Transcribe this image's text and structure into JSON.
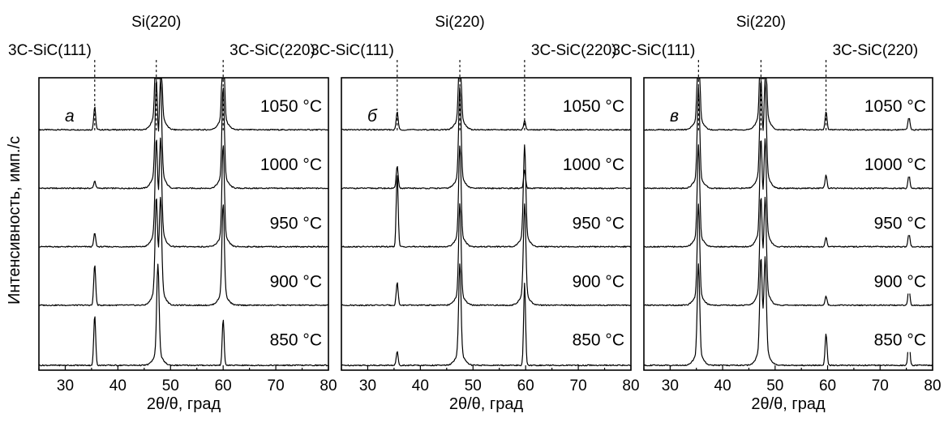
{
  "figure": {
    "ylabel": "Интенсивность, имп./с"
  },
  "chart_data": [
    {
      "type": "line",
      "panel_label": "а",
      "xlabel": "2θ/θ, град",
      "xlim": [
        25,
        80
      ],
      "xticks": [
        30,
        40,
        50,
        60,
        70,
        80
      ],
      "reference_lines": [
        {
          "label": "3C-SiC(111)",
          "x": 35.6
        },
        {
          "label": "Si(220)",
          "x": 47.3
        },
        {
          "label": "3C-SiC(220)",
          "x": 60.0
        }
      ],
      "series": [
        {
          "name": "1050 °C",
          "peaks": [
            {
              "x": 35.6,
              "h": 0.25
            },
            {
              "x": 47.3,
              "h": 1.0
            },
            {
              "x": 48.1,
              "h": 1.0
            },
            {
              "x": 60.0,
              "h": 1.0
            }
          ]
        },
        {
          "name": "1000 °C",
          "peaks": [
            {
              "x": 35.6,
              "h": 0.08
            },
            {
              "x": 47.3,
              "h": 1.0
            },
            {
              "x": 48.1,
              "h": 1.0
            },
            {
              "x": 60.0,
              "h": 1.0
            }
          ]
        },
        {
          "name": "950 °C",
          "peaks": [
            {
              "x": 35.6,
              "h": 0.15
            },
            {
              "x": 47.3,
              "h": 1.0
            },
            {
              "x": 48.1,
              "h": 1.0
            },
            {
              "x": 60.0,
              "h": 1.0
            }
          ]
        },
        {
          "name": "900 °C",
          "peaks": [
            {
              "x": 35.6,
              "h": 0.45
            },
            {
              "x": 47.3,
              "h": 1.0
            },
            {
              "x": 48.1,
              "h": 1.0
            },
            {
              "x": 60.0,
              "h": 1.0
            }
          ]
        },
        {
          "name": "850 °C",
          "peaks": [
            {
              "x": 35.6,
              "h": 0.55
            },
            {
              "x": 47.6,
              "h": 1.0
            },
            {
              "x": 60.0,
              "h": 0.5
            }
          ]
        }
      ]
    },
    {
      "type": "line",
      "panel_label": "б",
      "xlabel": "2θ/θ, град",
      "xlim": [
        25,
        80
      ],
      "xticks": [
        30,
        40,
        50,
        60,
        70,
        80
      ],
      "reference_lines": [
        {
          "label": "3C-SiC(111)",
          "x": 35.6
        },
        {
          "label": "Si(220)",
          "x": 47.5
        },
        {
          "label": "3C-SiC(220)",
          "x": 59.8
        }
      ],
      "series": [
        {
          "name": "1050 °C",
          "peaks": [
            {
              "x": 35.6,
              "h": 0.2
            },
            {
              "x": 47.5,
              "h": 1.0
            },
            {
              "x": 59.8,
              "h": 0.1
            }
          ]
        },
        {
          "name": "1000 °C",
          "peaks": [
            {
              "x": 35.6,
              "h": 0.25
            },
            {
              "x": 47.5,
              "h": 1.0
            },
            {
              "x": 59.8,
              "h": 0.2
            }
          ]
        },
        {
          "name": "950 °C",
          "peaks": [
            {
              "x": 35.6,
              "h": 0.8
            },
            {
              "x": 47.5,
              "h": 1.0
            },
            {
              "x": 59.8,
              "h": 1.0
            }
          ]
        },
        {
          "name": "900 °C",
          "peaks": [
            {
              "x": 35.6,
              "h": 0.25
            },
            {
              "x": 47.5,
              "h": 1.0
            },
            {
              "x": 59.8,
              "h": 1.0
            }
          ]
        },
        {
          "name": "850 °C",
          "peaks": [
            {
              "x": 35.6,
              "h": 0.15
            },
            {
              "x": 47.5,
              "h": 1.0
            },
            {
              "x": 59.8,
              "h": 0.9
            }
          ]
        }
      ]
    },
    {
      "type": "line",
      "panel_label": "в",
      "xlabel": "2θ/θ, град",
      "xlim": [
        25,
        80
      ],
      "xticks": [
        30,
        40,
        50,
        60,
        70,
        80
      ],
      "reference_lines": [
        {
          "label": "3C-SiC(111)",
          "x": 35.4
        },
        {
          "label": "Si(220)",
          "x": 47.3
        },
        {
          "label": "3C-SiC(220)",
          "x": 59.7
        }
      ],
      "series": [
        {
          "name": "1050 °C",
          "peaks": [
            {
              "x": 35.4,
              "h": 1.0
            },
            {
              "x": 47.3,
              "h": 1.0
            },
            {
              "x": 48.1,
              "h": 1.0
            },
            {
              "x": 59.7,
              "h": 0.2
            },
            {
              "x": 75.5,
              "h": 0.15
            }
          ]
        },
        {
          "name": "1000 °C",
          "peaks": [
            {
              "x": 35.4,
              "h": 1.0
            },
            {
              "x": 47.3,
              "h": 1.0
            },
            {
              "x": 48.1,
              "h": 1.0
            },
            {
              "x": 59.7,
              "h": 0.15
            },
            {
              "x": 75.5,
              "h": 0.15
            }
          ]
        },
        {
          "name": "950 °C",
          "peaks": [
            {
              "x": 35.4,
              "h": 1.0
            },
            {
              "x": 47.3,
              "h": 1.0
            },
            {
              "x": 48.1,
              "h": 1.0
            },
            {
              "x": 59.7,
              "h": 0.1
            },
            {
              "x": 75.5,
              "h": 0.15
            }
          ]
        },
        {
          "name": "900 °C",
          "peaks": [
            {
              "x": 35.4,
              "h": 1.0
            },
            {
              "x": 47.3,
              "h": 1.0
            },
            {
              "x": 48.1,
              "h": 1.0
            },
            {
              "x": 59.7,
              "h": 0.1
            },
            {
              "x": 75.5,
              "h": 0.2
            }
          ]
        },
        {
          "name": "850 °C",
          "peaks": [
            {
              "x": 35.4,
              "h": 1.0
            },
            {
              "x": 47.3,
              "h": 1.0
            },
            {
              "x": 48.1,
              "h": 1.0
            },
            {
              "x": 59.7,
              "h": 0.35
            },
            {
              "x": 75.5,
              "h": 0.3
            }
          ]
        }
      ]
    }
  ]
}
